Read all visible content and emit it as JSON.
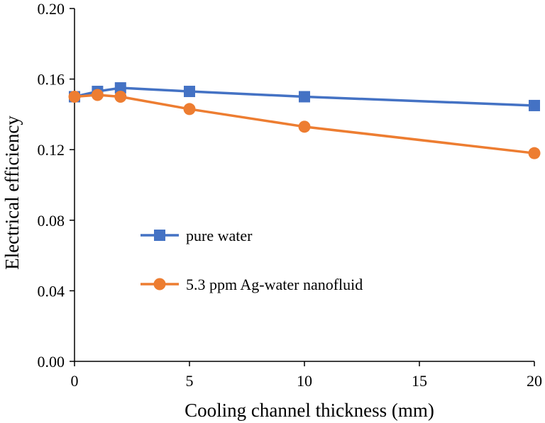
{
  "chart_data": {
    "type": "line",
    "title": "",
    "xlabel": "Cooling channel thickness (mm)",
    "ylabel": "Electrical efficiency",
    "xlim": [
      0,
      20
    ],
    "ylim": [
      0,
      0.2
    ],
    "x_ticks": [
      0,
      5,
      10,
      15,
      20
    ],
    "x_tick_labels": [
      "0",
      "5",
      "10",
      "15",
      "20"
    ],
    "y_ticks": [
      0,
      0.04,
      0.08,
      0.12,
      0.16,
      0.2
    ],
    "y_tick_labels": [
      "0.00",
      "0.04",
      "0.08",
      "0.12",
      "0.16",
      "0.20"
    ],
    "grid": false,
    "legend_position": "center-left",
    "series": [
      {
        "name": "pure water",
        "color": "#4472C4",
        "marker": "square",
        "x": [
          0,
          1,
          2,
          5,
          10,
          20
        ],
        "y": [
          0.15,
          0.153,
          0.155,
          0.153,
          0.15,
          0.145
        ]
      },
      {
        "name": "5.3 ppm Ag-water nanofluid",
        "color": "#ED7D31",
        "marker": "circle",
        "x": [
          0,
          1,
          2,
          5,
          10,
          20
        ],
        "y": [
          0.15,
          0.151,
          0.15,
          0.143,
          0.133,
          0.118
        ]
      }
    ]
  }
}
